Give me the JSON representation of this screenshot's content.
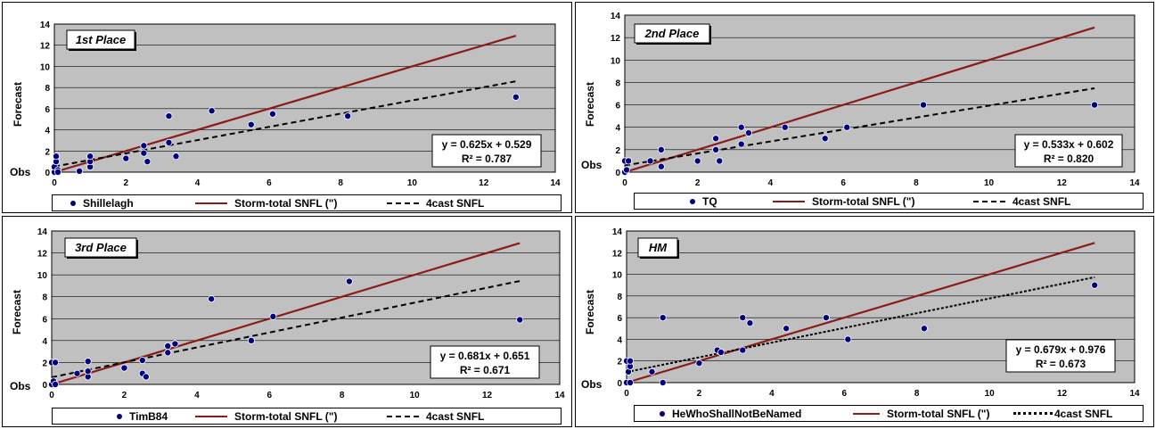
{
  "colors": {
    "plot_bg": "#c0c0c0",
    "point": "#000080",
    "storm_line": "#8b1a1a",
    "trend_line": "#000000",
    "grid": "#000000"
  },
  "chart_data": [
    {
      "type": "scatter",
      "place_label": "1st Place",
      "xlabel": "Obs",
      "ylabel": "Forecast",
      "xlim": [
        0,
        14
      ],
      "ylim": [
        0,
        14
      ],
      "xticks": [
        0,
        2,
        4,
        6,
        8,
        10,
        12,
        14
      ],
      "yticks": [
        0,
        2,
        4,
        6,
        8,
        10,
        12,
        14
      ],
      "grid": true,
      "series": [
        {
          "name": "Shillelagh",
          "kind": "points",
          "x": [
            0,
            0,
            0.05,
            0.05,
            0.1,
            0.1,
            0.7,
            1,
            1,
            1,
            2,
            2.5,
            2.5,
            2.6,
            3.2,
            3.2,
            3.4,
            4.4,
            5.5,
            6.1,
            8.2,
            12.9
          ],
          "y": [
            0,
            0.5,
            1,
            1.5,
            0.2,
            0,
            0.1,
            0.5,
            1,
            1.5,
            1.3,
            2.5,
            1.8,
            1,
            5.3,
            2.8,
            1.5,
            5.8,
            4.5,
            5.5,
            5.3,
            7.1
          ]
        },
        {
          "name": "Storm-total SNFL (\")",
          "kind": "line",
          "x": [
            0,
            12.9
          ],
          "y": [
            0,
            12.9
          ]
        },
        {
          "name": "4cast SNFL",
          "kind": "trend",
          "slope": 0.625,
          "intercept": 0.529,
          "x_range": [
            0,
            12.9
          ]
        }
      ],
      "equation": "y = 0.625x + 0.529",
      "r2": "R² = 0.787",
      "legend_position": "bottom"
    },
    {
      "type": "scatter",
      "place_label": "2nd Place",
      "xlabel": "Obs",
      "ylabel": "Forecast",
      "xlim": [
        0,
        14
      ],
      "ylim": [
        0,
        14
      ],
      "xticks": [
        0,
        2,
        4,
        6,
        8,
        10,
        12,
        14
      ],
      "yticks": [
        0,
        2,
        4,
        6,
        8,
        10,
        12,
        14
      ],
      "grid": true,
      "series": [
        {
          "name": "TQ",
          "kind": "points",
          "x": [
            0,
            0,
            0.05,
            0.1,
            0.7,
            1,
            1,
            2,
            2.5,
            2.5,
            2.6,
            3.2,
            3.2,
            3.4,
            4.4,
            5.5,
            6.1,
            8.2,
            12.9
          ],
          "y": [
            0,
            1,
            0.2,
            1,
            1,
            0.5,
            2,
            1,
            3,
            2,
            1,
            4,
            2.5,
            3.5,
            4,
            3,
            4,
            6,
            6
          ]
        },
        {
          "name": "Storm-total SNFL (\")",
          "kind": "line",
          "x": [
            0,
            12.9
          ],
          "y": [
            0,
            12.9
          ]
        },
        {
          "name": "4cast SNFL",
          "kind": "trend",
          "slope": 0.533,
          "intercept": 0.602,
          "x_range": [
            0,
            12.9
          ]
        }
      ],
      "equation": "y = 0.533x + 0.602",
      "r2": "R² = 0.820",
      "legend_position": "bottom"
    },
    {
      "type": "scatter",
      "place_label": "3rd Place",
      "xlabel": "Obs",
      "ylabel": "Forecast",
      "xlim": [
        0,
        14
      ],
      "ylim": [
        0,
        14
      ],
      "xticks": [
        0,
        2,
        4,
        6,
        8,
        10,
        12,
        14
      ],
      "yticks": [
        0,
        2,
        4,
        6,
        8,
        10,
        12,
        14
      ],
      "grid": true,
      "series": [
        {
          "name": "TimB84",
          "kind": "points",
          "x": [
            0,
            0,
            0.05,
            0.1,
            0.1,
            0.7,
            1,
            1,
            1,
            2,
            2.5,
            2.5,
            2.6,
            3.2,
            3.2,
            3.4,
            4.4,
            5.5,
            6.1,
            8.2,
            12.9
          ],
          "y": [
            0,
            2,
            0.3,
            2,
            0,
            1,
            0.7,
            2.1,
            1.2,
            1.5,
            2.2,
            1,
            0.7,
            3.5,
            2.9,
            3.7,
            7.8,
            4,
            6.2,
            9.4,
            5.9
          ]
        },
        {
          "name": "Storm-total SNFL (\")",
          "kind": "line",
          "x": [
            0,
            12.9
          ],
          "y": [
            0,
            12.9
          ]
        },
        {
          "name": "4cast SNFL",
          "kind": "trend",
          "slope": 0.681,
          "intercept": 0.651,
          "x_range": [
            0,
            12.9
          ]
        }
      ],
      "equation": "y = 0.681x + 0.651",
      "r2": "R² = 0.671",
      "legend_position": "bottom"
    },
    {
      "type": "scatter",
      "place_label": "HM",
      "xlabel": "Obs",
      "ylabel": "Forecast",
      "xlim": [
        0,
        14
      ],
      "ylim": [
        0,
        14
      ],
      "xticks": [
        0,
        2,
        4,
        6,
        8,
        10,
        12,
        14
      ],
      "yticks": [
        0,
        2,
        4,
        6,
        8,
        10,
        12,
        14
      ],
      "grid": true,
      "series": [
        {
          "name": "HeWhoShallNotBeNamed",
          "kind": "points",
          "x": [
            0,
            0,
            0.05,
            0.1,
            0.1,
            0.1,
            0.7,
            1,
            1,
            2,
            2.5,
            2.6,
            3.2,
            3.2,
            3.4,
            4.4,
            5.5,
            6.1,
            8.2,
            12.9
          ],
          "y": [
            0,
            2,
            1,
            1.5,
            0,
            2,
            1,
            6,
            0,
            1.8,
            3,
            2.8,
            6,
            3,
            5.5,
            5,
            6,
            4,
            5,
            9
          ]
        },
        {
          "name": "Storm-total SNFL (\")",
          "kind": "line",
          "x": [
            0,
            12.9
          ],
          "y": [
            0,
            12.9
          ]
        },
        {
          "name": "4cast SNFL",
          "kind": "trend",
          "slope": 0.679,
          "intercept": 0.976,
          "x_range": [
            0,
            12.9
          ]
        }
      ],
      "equation": "y = 0.679x + 0.976",
      "r2": "R² = 0.673",
      "legend_position": "bottom"
    }
  ]
}
